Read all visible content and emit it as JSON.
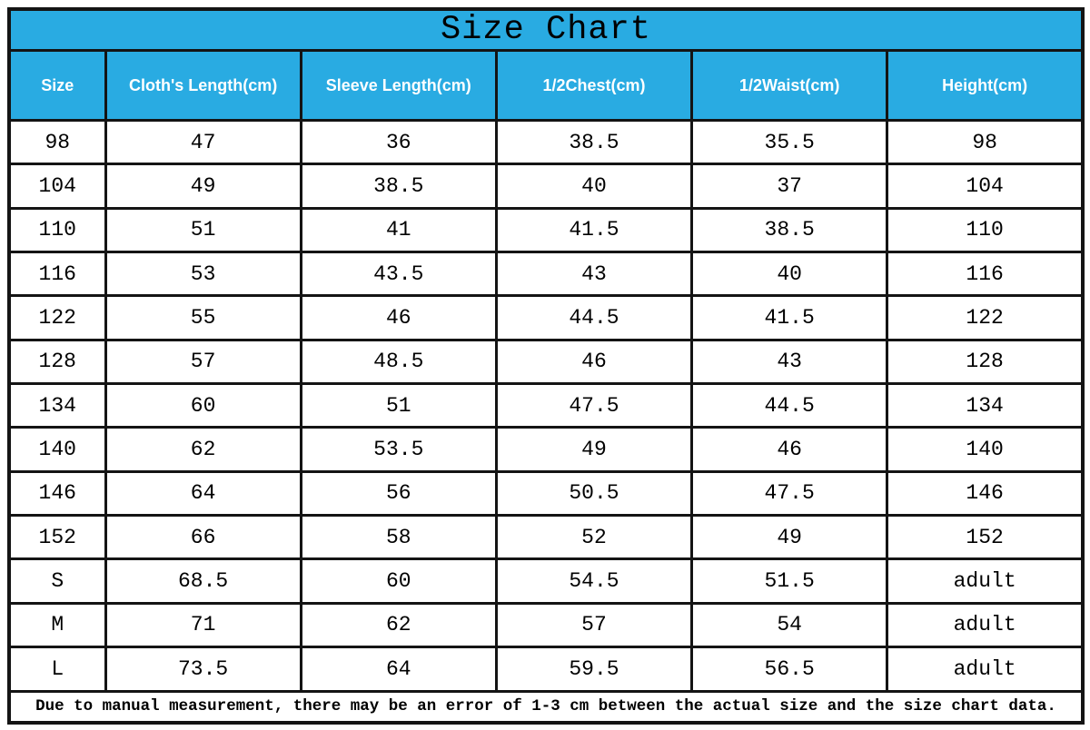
{
  "title": "Size Chart",
  "footnote": "Due to manual measurement, there may be an error of 1-3 cm between the actual size and the size chart data.",
  "colors": {
    "header_bg": "#29ABE2",
    "header_text": "#ffffff",
    "title_text": "#000000",
    "body_text": "#000000",
    "border": "#141414"
  },
  "chart_data": {
    "type": "table",
    "title": "Size Chart",
    "columns": [
      "Size",
      "Cloth's Length(cm)",
      "Sleeve Length(cm)",
      "1/2Chest(cm)",
      "1/2Waist(cm)",
      "Height(cm)"
    ],
    "rows": [
      [
        "98",
        "47",
        "36",
        "38.5",
        "35.5",
        "98"
      ],
      [
        "104",
        "49",
        "38.5",
        "40",
        "37",
        "104"
      ],
      [
        "110",
        "51",
        "41",
        "41.5",
        "38.5",
        "110"
      ],
      [
        "116",
        "53",
        "43.5",
        "43",
        "40",
        "116"
      ],
      [
        "122",
        "55",
        "46",
        "44.5",
        "41.5",
        "122"
      ],
      [
        "128",
        "57",
        "48.5",
        "46",
        "43",
        "128"
      ],
      [
        "134",
        "60",
        "51",
        "47.5",
        "44.5",
        "134"
      ],
      [
        "140",
        "62",
        "53.5",
        "49",
        "46",
        "140"
      ],
      [
        "146",
        "64",
        "56",
        "50.5",
        "47.5",
        "146"
      ],
      [
        "152",
        "66",
        "58",
        "52",
        "49",
        "152"
      ],
      [
        "S",
        "68.5",
        "60",
        "54.5",
        "51.5",
        "adult"
      ],
      [
        "M",
        "71",
        "62",
        "57",
        "54",
        "adult"
      ],
      [
        "L",
        "73.5",
        "64",
        "59.5",
        "56.5",
        "adult"
      ]
    ],
    "footnote": "Due to manual measurement, there may be an error of 1-3 cm between the actual size and the size chart data."
  }
}
